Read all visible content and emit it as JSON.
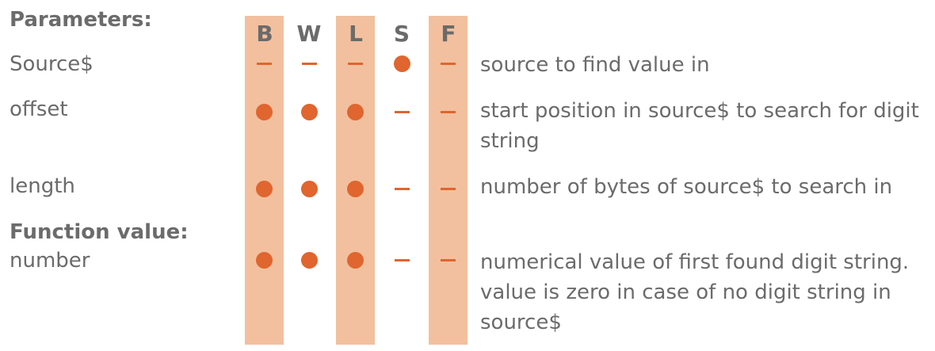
{
  "parameters_heading": "Parameters:",
  "function_value_heading": "Function value:",
  "columns": [
    "B",
    "W",
    "L",
    "S",
    "F"
  ],
  "rows": [
    {
      "name": "Source$",
      "marks": [
        "dash",
        "dash",
        "dash",
        "dot",
        "dash"
      ],
      "description": "source to find value in"
    },
    {
      "name": "offset",
      "marks": [
        "dot",
        "dot",
        "dot",
        "dash",
        "dash"
      ],
      "description": "start position in source$ to search for digit string"
    },
    {
      "name": "length",
      "marks": [
        "dot",
        "dot",
        "dot",
        "dash",
        "dash"
      ],
      "description": "number of bytes of source$ to search in"
    },
    {
      "name": "number",
      "marks": [
        "dot",
        "dot",
        "dot",
        "dash",
        "dash"
      ],
      "description": "numerical value of first found digit string. value is zero in case of no digit string in source$"
    }
  ]
}
